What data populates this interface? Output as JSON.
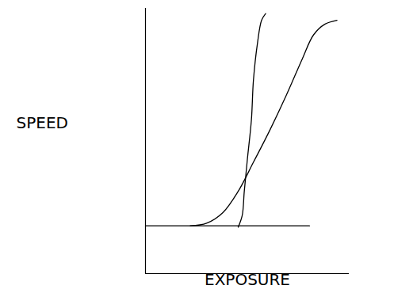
{
  "chart_data": {
    "type": "line",
    "x_label": "EXPOSURE",
    "y_label": "SPEED",
    "xlim": [
      0,
      10
    ],
    "ylim": [
      0,
      10
    ],
    "xticks": [],
    "yticks": [],
    "tick_labels": false,
    "grid": false,
    "series": [
      {
        "color": "#000000",
        "x": [
          0,
          8.05
        ],
        "values": [
          1.8,
          1.8
        ]
      },
      {
        "color": "#000000",
        "x": [
          2.2,
          3.0,
          3.8,
          4.55,
          5.3,
          6.1,
          6.9,
          7.7,
          8.25,
          8.8,
          9.4
        ],
        "values": [
          1.8,
          1.9,
          2.3,
          3.1,
          4.2,
          5.4,
          6.7,
          8.1,
          9.0,
          9.4,
          9.55
        ]
      },
      {
        "color": "#000000",
        "x": [
          4.55,
          4.75,
          4.85,
          5.0,
          5.2,
          5.3,
          5.5,
          5.7,
          5.9
        ],
        "values": [
          1.75,
          2.2,
          3.1,
          4.3,
          5.8,
          7.3,
          8.7,
          9.55,
          9.8
        ]
      }
    ]
  }
}
